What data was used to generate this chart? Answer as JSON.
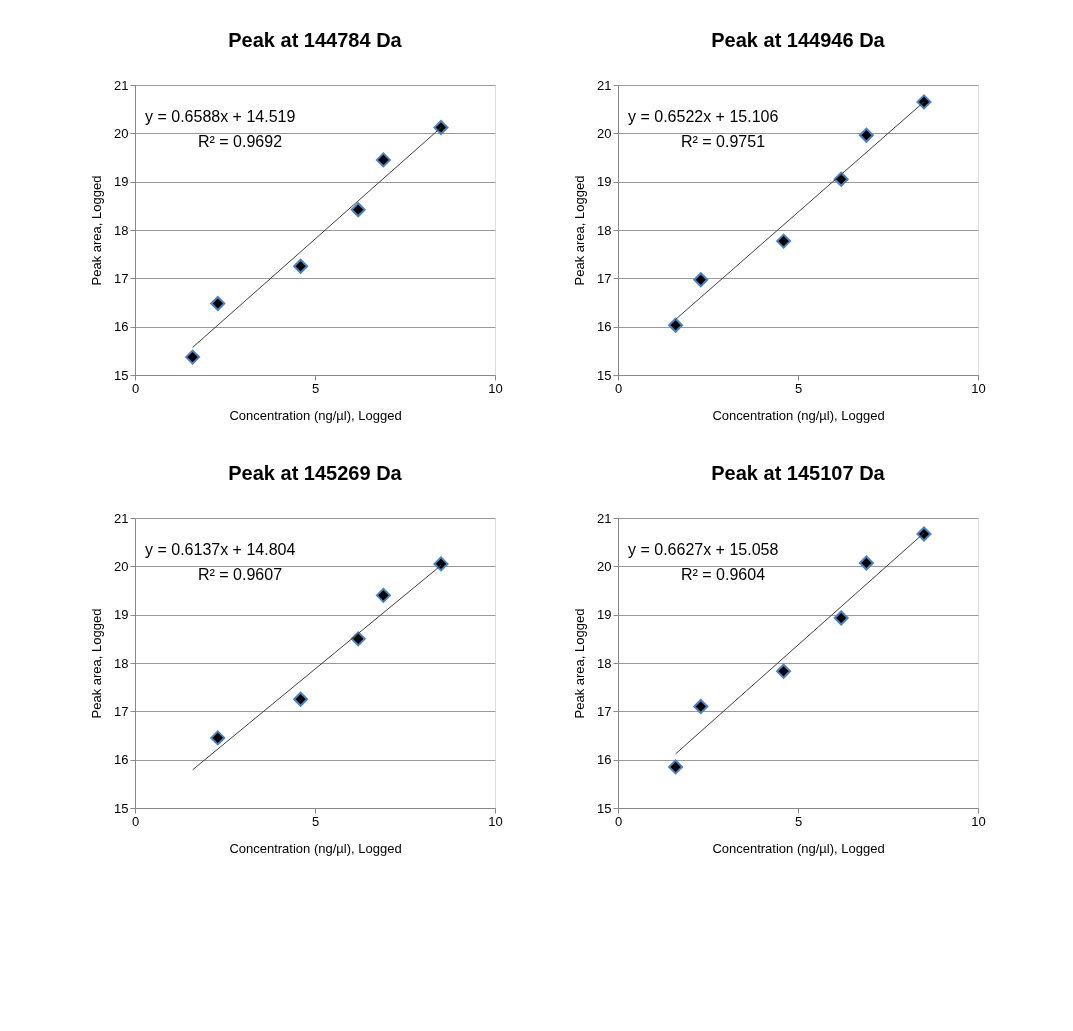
{
  "chart_data": [
    {
      "type": "scatter",
      "title": "Peak at 144784 Da",
      "xlabel": "Concentration (ng/µl), Logged",
      "ylabel": "Peak area, Logged",
      "xlim": [
        0,
        10
      ],
      "xticks": [
        0,
        5,
        10
      ],
      "ylim": [
        15,
        21
      ],
      "yticks": [
        15,
        16,
        17,
        18,
        19,
        20,
        21
      ],
      "grid": "y",
      "marker": "diamond",
      "annotations": [
        "y = 0.6588x + 14.519",
        "R² = 0.9692"
      ],
      "series": [
        {
          "color": "#000000",
          "x": [
            1.6,
            2.3,
            4.6,
            6.2,
            6.9,
            8.5
          ],
          "values": [
            15.37,
            16.48,
            17.25,
            18.42,
            19.45,
            20.12
          ]
        },
        {
          "type": "line",
          "marker": "none",
          "color": "#404040",
          "x": [
            1.6,
            8.5
          ],
          "values": [
            15.57,
            20.12
          ]
        }
      ]
    },
    {
      "type": "scatter",
      "title": "Peak at 144946 Da",
      "xlabel": "Concentration (ng/µl), Logged",
      "ylabel": "Peak area, Logged",
      "xlim": [
        0,
        10
      ],
      "xticks": [
        0,
        5,
        10
      ],
      "ylim": [
        15,
        21
      ],
      "yticks": [
        15,
        16,
        17,
        18,
        19,
        20,
        21
      ],
      "grid": "y",
      "marker": "diamond",
      "annotations": [
        "y = 0.6522x + 15.106",
        "R² = 0.9751"
      ],
      "series": [
        {
          "color": "#000000",
          "x": [
            1.6,
            2.3,
            4.6,
            6.2,
            6.9,
            8.5
          ],
          "values": [
            16.03,
            16.97,
            17.77,
            19.05,
            19.96,
            20.65
          ]
        },
        {
          "type": "line",
          "marker": "none",
          "color": "#404040",
          "x": [
            1.6,
            8.5
          ],
          "values": [
            16.15,
            20.65
          ]
        }
      ]
    },
    {
      "type": "scatter",
      "title": "Peak at 145269 Da",
      "xlabel": "Concentration (ng/µl), Logged",
      "ylabel": "Peak area, Logged",
      "xlim": [
        0,
        10
      ],
      "xticks": [
        0,
        5,
        10
      ],
      "ylim": [
        15,
        21
      ],
      "yticks": [
        15,
        16,
        17,
        18,
        19,
        20,
        21
      ],
      "grid": "y",
      "marker": "diamond",
      "annotations": [
        "y = 0.6137x + 14.804",
        "R² = 0.9607"
      ],
      "series": [
        {
          "color": "#000000",
          "x": [
            2.3,
            4.6,
            6.2,
            6.9,
            8.5
          ],
          "values": [
            16.45,
            17.25,
            18.5,
            19.4,
            20.05
          ]
        },
        {
          "type": "line",
          "marker": "none",
          "color": "#404040",
          "x": [
            1.6,
            8.5
          ],
          "values": [
            15.79,
            20.02
          ]
        }
      ]
    },
    {
      "type": "scatter",
      "title": "Peak at 145107 Da",
      "xlabel": "Concentration (ng/µl), Logged",
      "ylabel": "Peak area, Logged",
      "xlim": [
        0,
        10
      ],
      "xticks": [
        0,
        5,
        10
      ],
      "ylim": [
        15,
        21
      ],
      "yticks": [
        15,
        16,
        17,
        18,
        19,
        20,
        21
      ],
      "grid": "y",
      "marker": "diamond",
      "annotations": [
        "y = 0.6627x + 15.058",
        "R² = 0.9604"
      ],
      "series": [
        {
          "color": "#000000",
          "x": [
            1.6,
            2.3,
            4.6,
            6.2,
            6.9,
            8.5
          ],
          "values": [
            15.85,
            17.1,
            17.83,
            18.93,
            20.07,
            20.67
          ]
        },
        {
          "type": "line",
          "marker": "none",
          "color": "#404040",
          "x": [
            1.6,
            8.5
          ],
          "values": [
            16.12,
            20.69
          ]
        }
      ]
    }
  ]
}
